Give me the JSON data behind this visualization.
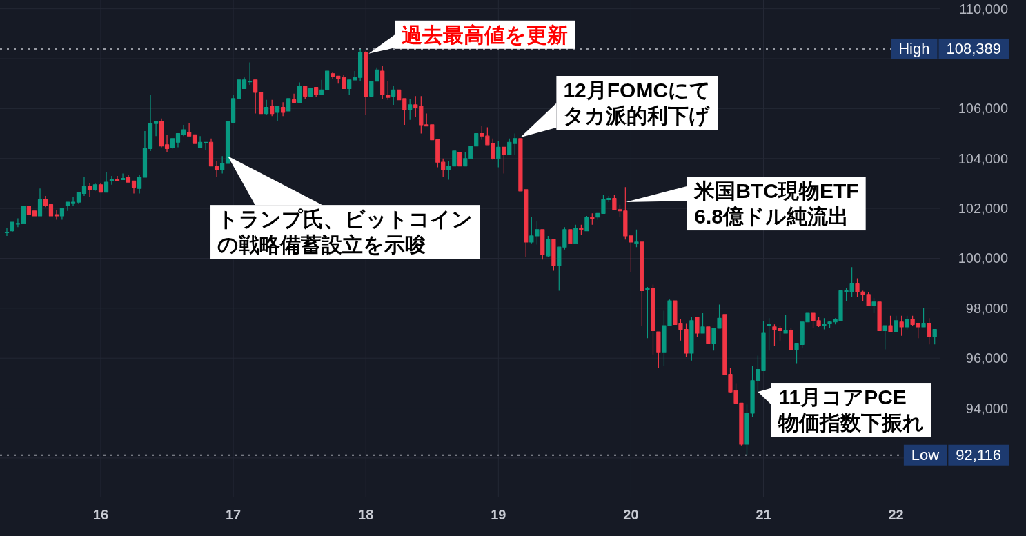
{
  "chart_data": {
    "type": "candlestick",
    "x": [
      15.292,
      15.333,
      15.375,
      15.417,
      15.458,
      15.5,
      15.542,
      15.583,
      15.625,
      15.667,
      15.708,
      15.75,
      15.792,
      15.833,
      15.875,
      15.917,
      15.958,
      16,
      16.042,
      16.083,
      16.125,
      16.167,
      16.208,
      16.25,
      16.292,
      16.333,
      16.375,
      16.417,
      16.458,
      16.5,
      16.542,
      16.583,
      16.625,
      16.667,
      16.708,
      16.75,
      16.792,
      16.833,
      16.875,
      16.917,
      16.958,
      17,
      17.042,
      17.083,
      17.125,
      17.167,
      17.208,
      17.25,
      17.292,
      17.333,
      17.375,
      17.417,
      17.458,
      17.5,
      17.542,
      17.583,
      17.625,
      17.667,
      17.708,
      17.75,
      17.792,
      17.833,
      17.875,
      17.917,
      17.958,
      18,
      18.042,
      18.083,
      18.125,
      18.167,
      18.208,
      18.25,
      18.292,
      18.333,
      18.375,
      18.417,
      18.458,
      18.5,
      18.542,
      18.583,
      18.625,
      18.667,
      18.708,
      18.75,
      18.792,
      18.833,
      18.875,
      18.917,
      18.958,
      19,
      19.042,
      19.083,
      19.125,
      19.167,
      19.208,
      19.25,
      19.292,
      19.333,
      19.375,
      19.417,
      19.458,
      19.5,
      19.542,
      19.583,
      19.625,
      19.667,
      19.708,
      19.75,
      19.792,
      19.833,
      19.875,
      19.917,
      19.958,
      20,
      20.042,
      20.083,
      20.125,
      20.167,
      20.208,
      20.25,
      20.292,
      20.333,
      20.375,
      20.417,
      20.458,
      20.5,
      20.542,
      20.583,
      20.625,
      20.667,
      20.708,
      20.75,
      20.792,
      20.833,
      20.875,
      20.917,
      20.958,
      21,
      21.042,
      21.083,
      21.125,
      21.167,
      21.208,
      21.25,
      21.292,
      21.333,
      21.375,
      21.417,
      21.458,
      21.5,
      21.542,
      21.583,
      21.625,
      21.667,
      21.708,
      21.75,
      21.792,
      21.833,
      21.875,
      21.917,
      21.958,
      22,
      22.042,
      22.083,
      22.125,
      22.167,
      22.208,
      22.25,
      22.292
    ],
    "ohlc": [
      [
        101050,
        101200,
        100900,
        101050
      ],
      [
        101100,
        101450,
        101050,
        101450
      ],
      [
        101400,
        101600,
        101250,
        101400
      ],
      [
        101400,
        102100,
        101400,
        102100
      ],
      [
        102100,
        102100,
        101750,
        101750
      ],
      [
        101900,
        101900,
        101700,
        101700
      ],
      [
        101700,
        102800,
        101700,
        102350
      ],
      [
        102350,
        102500,
        102050,
        102100
      ],
      [
        102150,
        102150,
        101700,
        101700
      ],
      [
        101750,
        101950,
        101550,
        101700
      ],
      [
        101700,
        102000,
        101550,
        102000
      ],
      [
        102100,
        102250,
        101900,
        102250
      ],
      [
        102250,
        102450,
        102100,
        102250
      ],
      [
        102250,
        102650,
        102200,
        102650
      ],
      [
        102600,
        103250,
        102500,
        102900
      ],
      [
        102900,
        103000,
        102450,
        102750
      ],
      [
        102750,
        103000,
        102700,
        102950
      ],
      [
        102950,
        103000,
        102650,
        102650
      ],
      [
        102650,
        103450,
        102650,
        103050
      ],
      [
        103100,
        103300,
        102950,
        103150
      ],
      [
        103150,
        103300,
        103100,
        103100
      ],
      [
        103150,
        103400,
        103150,
        103200
      ],
      [
        103250,
        103350,
        103050,
        103050
      ],
      [
        103100,
        103100,
        102600,
        102850
      ],
      [
        102800,
        103350,
        102600,
        103250
      ],
      [
        103250,
        105100,
        103250,
        104400
      ],
      [
        104400,
        106550,
        104300,
        105400
      ],
      [
        105400,
        105500,
        104900,
        105500
      ],
      [
        105500,
        105600,
        104450,
        104500
      ],
      [
        104550,
        104950,
        104250,
        104400
      ],
      [
        104450,
        104800,
        104400,
        104800
      ],
      [
        104650,
        105000,
        104450,
        105000
      ],
      [
        104950,
        105350,
        104900,
        105150
      ],
      [
        105050,
        105400,
        104900,
        104900
      ],
      [
        104950,
        104950,
        104600,
        104600
      ],
      [
        104450,
        104900,
        104450,
        104650
      ],
      [
        104650,
        104650,
        104350,
        104650
      ],
      [
        104650,
        104800,
        103700,
        103700
      ],
      [
        103700,
        103900,
        103250,
        103550
      ],
      [
        103550,
        104100,
        103400,
        103800
      ],
      [
        103800,
        105500,
        103800,
        105500
      ],
      [
        105450,
        106550,
        105450,
        106400
      ],
      [
        106400,
        107150,
        106400,
        107150
      ],
      [
        106800,
        107250,
        106800,
        107150
      ],
      [
        107100,
        107850,
        106950,
        107100
      ],
      [
        107150,
        107150,
        105800,
        106650
      ],
      [
        106650,
        106650,
        105800,
        105800
      ],
      [
        105800,
        106350,
        105750,
        106050
      ],
      [
        106100,
        106350,
        105700,
        105800
      ],
      [
        105850,
        106100,
        105500,
        106100
      ],
      [
        106050,
        106250,
        105700,
        105850
      ],
      [
        105900,
        106400,
        105900,
        106400
      ],
      [
        106350,
        106600,
        106250,
        106250
      ],
      [
        106250,
        107050,
        106250,
        106900
      ],
      [
        106900,
        106900,
        106400,
        106500
      ],
      [
        106500,
        106800,
        106500,
        106800
      ],
      [
        106850,
        106850,
        106450,
        106550
      ],
      [
        106550,
        107150,
        106550,
        106750
      ],
      [
        106750,
        107500,
        106750,
        107500
      ],
      [
        107400,
        107450,
        107200,
        107300
      ],
      [
        107300,
        107300,
        107000,
        107200
      ],
      [
        107250,
        107350,
        106800,
        106800
      ],
      [
        106800,
        107150,
        106550,
        107150
      ],
      [
        107150,
        107500,
        107150,
        107250
      ],
      [
        107250,
        108389,
        107100,
        108250
      ],
      [
        108250,
        108300,
        105750,
        106500
      ],
      [
        106500,
        107100,
        106450,
        107100
      ],
      [
        107100,
        107650,
        107100,
        107550
      ],
      [
        107500,
        107700,
        106400,
        106550
      ],
      [
        106550,
        107100,
        106350,
        106450
      ],
      [
        106500,
        106900,
        106150,
        106750
      ],
      [
        106750,
        106750,
        106350,
        106350
      ],
      [
        106400,
        106400,
        105350,
        105950
      ],
      [
        105950,
        106400,
        105550,
        106150
      ],
      [
        106150,
        106500,
        105650,
        106050
      ],
      [
        106100,
        106500,
        105000,
        105350
      ],
      [
        105350,
        105800,
        105300,
        105300
      ],
      [
        105350,
        105350,
        104750,
        104750
      ],
      [
        104750,
        104750,
        103650,
        103850
      ],
      [
        103850,
        104000,
        103250,
        103550
      ],
      [
        103550,
        103900,
        103150,
        103700
      ],
      [
        103700,
        104300,
        103700,
        104300
      ],
      [
        104250,
        104250,
        103700,
        103700
      ],
      [
        103700,
        104250,
        103700,
        104000
      ],
      [
        104000,
        104500,
        104000,
        104500
      ],
      [
        104500,
        105000,
        104500,
        105000
      ],
      [
        105000,
        105300,
        104750,
        104900
      ],
      [
        104900,
        105250,
        104550,
        104550
      ],
      [
        104600,
        104800,
        103950,
        104000
      ],
      [
        104000,
        104700,
        103650,
        104450
      ],
      [
        104450,
        104450,
        103400,
        104150
      ],
      [
        104150,
        104800,
        104150,
        104650
      ],
      [
        104600,
        105000,
        104150,
        104800
      ],
      [
        104800,
        104800,
        102700,
        102700
      ],
      [
        102750,
        102750,
        100050,
        100650
      ],
      [
        100650,
        101650,
        100600,
        100900
      ],
      [
        100900,
        101500,
        100550,
        101150
      ],
      [
        101150,
        101150,
        99950,
        100150
      ],
      [
        100100,
        100900,
        100050,
        100750
      ],
      [
        100750,
        100750,
        99500,
        99700
      ],
      [
        99700,
        100450,
        98700,
        100450
      ],
      [
        100450,
        101250,
        100350,
        101150
      ],
      [
        101150,
        101150,
        100600,
        100600
      ],
      [
        100600,
        101350,
        100600,
        101200
      ],
      [
        101200,
        101350,
        100950,
        101150
      ],
      [
        101100,
        101700,
        101100,
        101650
      ],
      [
        101650,
        101800,
        101350,
        101600
      ],
      [
        101650,
        101800,
        101550,
        101800
      ],
      [
        101800,
        102550,
        101800,
        102350
      ],
      [
        102350,
        102500,
        102250,
        102400
      ],
      [
        102400,
        102550,
        101950,
        101950
      ],
      [
        101950,
        102150,
        101650,
        101900
      ],
      [
        101900,
        102850,
        100750,
        100900
      ],
      [
        100900,
        100900,
        99450,
        100650
      ],
      [
        100600,
        101150,
        100450,
        100650
      ],
      [
        100650,
        100650,
        97300,
        98700
      ],
      [
        98750,
        98850,
        96800,
        98800
      ],
      [
        98800,
        98950,
        96150,
        97100
      ],
      [
        97050,
        97050,
        95600,
        96250
      ],
      [
        96250,
        97900,
        95700,
        97300
      ],
      [
        97300,
        98350,
        97300,
        98300
      ],
      [
        98300,
        98300,
        97350,
        97350
      ],
      [
        97400,
        97550,
        96700,
        97150
      ],
      [
        97150,
        97400,
        96050,
        96200
      ],
      [
        96200,
        97650,
        95900,
        97500
      ],
      [
        97650,
        97650,
        96850,
        97000
      ],
      [
        97000,
        97800,
        97000,
        97250
      ],
      [
        97250,
        97250,
        96600,
        96600
      ],
      [
        96600,
        97200,
        96300,
        97200
      ],
      [
        97200,
        98150,
        97200,
        97600
      ],
      [
        97750,
        97750,
        95350,
        95350
      ],
      [
        95350,
        95600,
        94600,
        94650
      ],
      [
        94700,
        95000,
        94200,
        94200
      ],
      [
        94200,
        94200,
        92500,
        92550
      ],
      [
        92550,
        94150,
        92116,
        93800
      ],
      [
        93800,
        95700,
        93650,
        95100
      ],
      [
        95100,
        96100,
        94650,
        95550
      ],
      [
        95500,
        97500,
        95500,
        97000
      ],
      [
        97350,
        97600,
        96300,
        97350
      ],
      [
        97250,
        97350,
        96500,
        97150
      ],
      [
        97200,
        97300,
        96700,
        97100
      ],
      [
        97000,
        97750,
        97000,
        97100
      ],
      [
        97100,
        97200,
        96350,
        96350
      ],
      [
        96350,
        96600,
        95800,
        96600
      ],
      [
        96550,
        97450,
        96400,
        97450
      ],
      [
        97450,
        97800,
        97450,
        97800
      ],
      [
        97800,
        97800,
        97200,
        97500
      ],
      [
        97500,
        97650,
        97250,
        97300
      ],
      [
        97300,
        97600,
        97150,
        97350
      ],
      [
        97400,
        97500,
        97200,
        97450
      ],
      [
        97450,
        97600,
        97350,
        97550
      ],
      [
        97500,
        98700,
        97500,
        98700
      ],
      [
        98650,
        98800,
        98300,
        98700
      ],
      [
        98650,
        99650,
        98450,
        99000
      ],
      [
        99000,
        99200,
        98450,
        98650
      ],
      [
        98650,
        98700,
        98300,
        98550
      ],
      [
        98550,
        98650,
        98100,
        98100
      ],
      [
        98100,
        98400,
        97800,
        98250
      ],
      [
        98250,
        98250,
        97100,
        97100
      ],
      [
        97100,
        97300,
        96350,
        97300
      ],
      [
        97300,
        97700,
        97050,
        97050
      ],
      [
        97050,
        97700,
        97050,
        97500
      ],
      [
        97450,
        97700,
        96900,
        97250
      ],
      [
        97250,
        97700,
        97150,
        97550
      ],
      [
        97550,
        97700,
        97300,
        97350
      ],
      [
        97400,
        97400,
        96800,
        97250
      ],
      [
        97250,
        98000,
        97250,
        97400
      ],
      [
        97400,
        97600,
        96550,
        96850
      ],
      [
        96850,
        97150,
        96550,
        97150
      ]
    ],
    "colors": [
      "#089981",
      "#089981",
      "#089981",
      "#089981",
      "#f23645",
      "#f23645",
      "#089981",
      "#f23645",
      "#f23645",
      "#f23645",
      "#089981",
      "#089981",
      "#089981",
      "#089981",
      "#089981",
      "#f23645",
      "#089981",
      "#f23645",
      "#089981",
      "#089981",
      "#f23645",
      "#089981",
      "#f23645",
      "#f23645",
      "#089981",
      "#089981",
      "#089981",
      "#089981",
      "#f23645",
      "#f23645",
      "#089981",
      "#089981",
      "#089981",
      "#f23645",
      "#f23645",
      "#089981",
      "#089981",
      "#f23645",
      "#f23645",
      "#089981",
      "#089981",
      "#089981",
      "#089981",
      "#089981",
      "#089981",
      "#f23645",
      "#f23645",
      "#089981",
      "#f23645",
      "#089981",
      "#f23645",
      "#089981",
      "#f23645",
      "#089981",
      "#f23645",
      "#089981",
      "#f23645",
      "#089981",
      "#089981",
      "#f23645",
      "#f23645",
      "#f23645",
      "#089981",
      "#089981",
      "#089981",
      "#f23645",
      "#089981",
      "#089981",
      "#f23645",
      "#f23645",
      "#089981",
      "#f23645",
      "#f23645",
      "#089981",
      "#f23645",
      "#f23645",
      "#f23645",
      "#f23645",
      "#f23645",
      "#f23645",
      "#089981",
      "#089981",
      "#f23645",
      "#089981",
      "#089981",
      "#089981",
      "#f23645",
      "#f23645",
      "#f23645",
      "#089981",
      "#f23645",
      "#089981",
      "#089981",
      "#f23645",
      "#f23645",
      "#089981",
      "#089981",
      "#f23645",
      "#089981",
      "#f23645",
      "#089981",
      "#089981",
      "#f23645",
      "#089981",
      "#f23645",
      "#089981",
      "#f23645",
      "#089981",
      "#089981",
      "#089981",
      "#f23645",
      "#f23645",
      "#f23645",
      "#f23645",
      "#089981",
      "#f23645",
      "#089981",
      "#f23645",
      "#f23645",
      "#089981",
      "#089981",
      "#f23645",
      "#f23645",
      "#f23645",
      "#089981",
      "#f23645",
      "#089981",
      "#f23645",
      "#089981",
      "#089981",
      "#f23645",
      "#f23645",
      "#f23645",
      "#f23645",
      "#089981",
      "#089981",
      "#089981",
      "#089981",
      "#089981",
      "#f23645",
      "#f23645",
      "#089981",
      "#f23645",
      "#089981",
      "#089981",
      "#089981",
      "#f23645",
      "#f23645",
      "#089981",
      "#089981",
      "#089981",
      "#089981",
      "#089981",
      "#089981",
      "#f23645",
      "#f23645",
      "#f23645",
      "#089981",
      "#f23645",
      "#089981",
      "#f23645",
      "#089981",
      "#f23645",
      "#089981",
      "#f23645",
      "#f23645",
      "#089981",
      "#f23645",
      "#089981"
    ],
    "xlim": [
      15.24,
      22.33
    ],
    "xticks": [
      16,
      17,
      18,
      19,
      20,
      21,
      22
    ],
    "ylim": [
      90450,
      110350
    ],
    "yticks": [
      {
        "value": 92000,
        "label": null
      },
      {
        "value": 94000,
        "label": "94,000"
      },
      {
        "value": 96000,
        "label": "96,000"
      },
      {
        "value": 98000,
        "label": "98,000"
      },
      {
        "value": 100000,
        "label": "100,000"
      },
      {
        "value": 102000,
        "label": "102,000"
      },
      {
        "value": 104000,
        "label": "104,000"
      },
      {
        "value": 106000,
        "label": "106,000"
      },
      {
        "value": 108000,
        "label": null
      },
      {
        "value": 110000,
        "label": "110,000"
      }
    ],
    "grid": true,
    "ref_lines": [
      {
        "axis": "y",
        "value": 108389,
        "label": "High 108,389",
        "color": "#9598a1",
        "line_style": "dotted"
      },
      {
        "axis": "y",
        "value": 92116,
        "label": "Low 92,116",
        "color": "#9598a1",
        "line_style": "dotted"
      }
    ],
    "annotations": [
      {
        "text": "トランプ氏、ビットコインの戦略備蓄設立を示唆",
        "x": 16.958,
        "y": 104100
      },
      {
        "text": "過去最高値を更新",
        "x": 18.021,
        "y": 108200
      },
      {
        "text": "12月FOMCにてタカ派的利下げ",
        "x": 19.167,
        "y": 104850
      },
      {
        "text": "米国BTC現物ETF\n6.8億ドル純流出",
        "x": 19.958,
        "y": 102250
      },
      {
        "text": "11月コアPCE\n物価指数下振れ",
        "x": 20.958,
        "y": 94650
      }
    ]
  }
}
